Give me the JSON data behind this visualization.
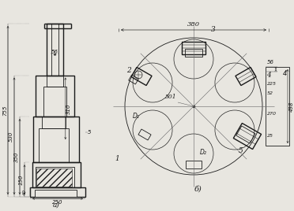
{
  "bg_color": "#e8e6e0",
  "line_color": "#1a1a1a",
  "fig_width": 3.72,
  "fig_height": 2.68,
  "label_a": "a)",
  "label_b": "б)",
  "dims_left": [
    "755",
    "530",
    "350",
    "150",
    "40"
  ],
  "dims_inner_a": [
    "56",
    "310"
  ],
  "dim_bottom_a": "250",
  "dim_5": "5",
  "dim_380": "380",
  "dim_501": "501",
  "dims_right_b": [
    "56",
    "4",
    "225",
    "52",
    "270",
    "25",
    "498"
  ],
  "labels_b": [
    "1",
    "2",
    "3",
    "4",
    "5"
  ],
  "label_d1": "D₁",
  "label_d2": "D₂"
}
